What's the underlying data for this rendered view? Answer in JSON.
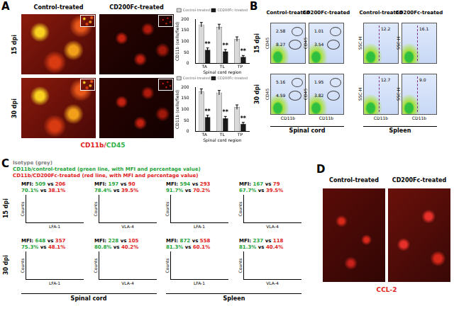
{
  "panel_labels": [
    "A",
    "B",
    "C",
    "D"
  ],
  "chart_data": [
    {
      "type": "bar",
      "categories": [
        "TA",
        "TL",
        "TP"
      ],
      "series": [
        {
          "name": "Control-treated",
          "color": "#d9d9d9",
          "values": [
            175,
            165,
            110
          ],
          "errors": [
            10,
            12,
            10
          ]
        },
        {
          "name": "CD200Fc-treated",
          "color": "#1a1a1a",
          "values": [
            62,
            55,
            30
          ],
          "errors": [
            8,
            8,
            6
          ],
          "annotations": [
            "**",
            "**",
            "**"
          ]
        }
      ],
      "ylim": [
        0,
        200
      ],
      "yticks": [
        0,
        50,
        100,
        150,
        200
      ],
      "y_label": "CD11b (cells/field)",
      "x_label": "Spinal cord region",
      "legend": "top",
      "grid": false
    },
    {
      "type": "bar",
      "categories": [
        "TA",
        "TL",
        "TP"
      ],
      "series": [
        {
          "name": "Control-treated",
          "color": "#d9d9d9",
          "values": [
            180,
            175,
            110
          ],
          "errors": [
            12,
            10,
            10
          ]
        },
        {
          "name": "CD200Fc-treated",
          "color": "#1a1a1a",
          "values": [
            65,
            60,
            35
          ],
          "errors": [
            8,
            8,
            6
          ],
          "annotations": [
            "**",
            "**",
            "**"
          ]
        }
      ],
      "ylim": [
        0,
        200
      ],
      "yticks": [
        0,
        50,
        100,
        150,
        200
      ],
      "y_label": "CD11b (cells/field)",
      "x_label": "Spinal cord region",
      "legend": "top",
      "grid": false
    }
  ],
  "panel_A": {
    "columns": [
      "Control-treated",
      "CD200Fc-treated"
    ],
    "rows": [
      "15 dpi",
      "30 dpi"
    ],
    "stain": [
      {
        "text": "CD11b",
        "color": "#e0201b"
      },
      {
        "text": "/",
        "color": "#e0201b"
      },
      {
        "text": "CD45",
        "color": "#2fb34a"
      }
    ]
  },
  "panel_B": {
    "columns": [
      "Control-treated",
      "CD200Fc-treated",
      "Control-treated",
      "CD200Fc-treated"
    ],
    "x_labels": [
      "CD11b",
      "CD11b",
      "CD11b",
      "CD11b"
    ],
    "y_labels": [
      "CD45",
      "CD45",
      "SSC-H",
      "SSC-H"
    ],
    "rows": [
      {
        "label": "15 dpi",
        "gates": [
          [
            "2.58",
            "8.27"
          ],
          [
            "1.01",
            "3.54"
          ],
          [
            "12.2"
          ],
          [
            "16.1"
          ]
        ]
      },
      {
        "label": "30 dpi",
        "gates": [
          [
            "5.16",
            "4.59"
          ],
          [
            "1.95",
            "3.82"
          ],
          [
            "12.7"
          ],
          [
            "9.0"
          ]
        ]
      }
    ],
    "groups": [
      "Spinal cord",
      "Spleen"
    ]
  },
  "panel_C": {
    "legend": [
      {
        "text": "Isotype (grey)",
        "color": "#808080"
      },
      {
        "text": "CD11b/control-treated (green line, with MFI and percentage value)",
        "color": "#1fa33a"
      },
      {
        "text": "CD11b/CD200Fc-treated (red line, with MFI and percentage value)",
        "color": "#e0201b"
      }
    ],
    "mfi_prefix": "MFI:",
    "joiner": "vs",
    "y_label": "Counts",
    "rows": [
      {
        "label": "15 dpi",
        "plots": [
          {
            "x_label": "LFA-1",
            "mfi": [
              "509",
              "206"
            ],
            "pct": [
              "70.1%",
              "38.1%"
            ]
          },
          {
            "x_label": "VLA-4",
            "mfi": [
              "197",
              "90"
            ],
            "pct": [
              "78.4%",
              "39.5%"
            ]
          },
          {
            "x_label": "LFA-1",
            "mfi": [
              "594",
              "293"
            ],
            "pct": [
              "91.7%",
              "70.2%"
            ]
          },
          {
            "x_label": "VLA-4",
            "mfi": [
              "167",
              "79"
            ],
            "pct": [
              "67.7%",
              "39.5%"
            ]
          }
        ]
      },
      {
        "label": "30 dpi",
        "plots": [
          {
            "x_label": "LFA-1",
            "mfi": [
              "648",
              "357"
            ],
            "pct": [
              "75.3%",
              "48.1%"
            ]
          },
          {
            "x_label": "VLA-4",
            "mfi": [
              "228",
              "105"
            ],
            "pct": [
              "80.8%",
              "40.2%"
            ]
          },
          {
            "x_label": "LFA-1",
            "mfi": [
              "872",
              "558"
            ],
            "pct": [
              "81.3%",
              "60.1%"
            ]
          },
          {
            "x_label": "VLA-4",
            "mfi": [
              "237",
              "118"
            ],
            "pct": [
              "81.3%",
              "40.4%"
            ]
          }
        ]
      }
    ],
    "groups": [
      "Spinal cord",
      "Spleen"
    ]
  },
  "panel_D": {
    "columns": [
      "Control-treated",
      "CD200Fc-treated"
    ],
    "stain": {
      "text": "CCL-2",
      "color": "#e0201b"
    }
  }
}
